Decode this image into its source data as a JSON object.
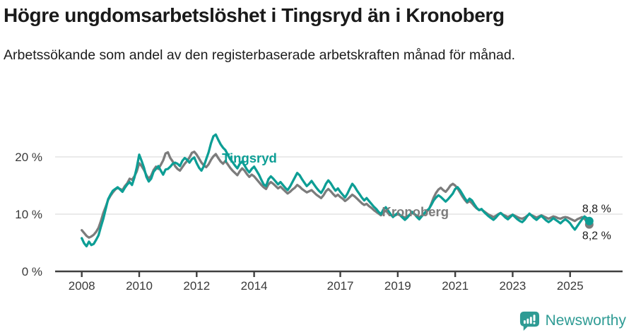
{
  "header": {
    "title": "Högre ungdomsarbetslöshet i Tingsryd än i Kronoberg",
    "subtitle": "Arbetssökande som andel av den registerbaserade arbetskraften månad för månad."
  },
  "chart_data": {
    "type": "line",
    "unit": "%",
    "frequency": "monthly",
    "x_start_year": 2008,
    "ylim": [
      0,
      25
    ],
    "yticks": [
      0,
      10,
      20
    ],
    "ytick_labels": [
      "0 %",
      "10 %",
      "20 %"
    ],
    "xticks": [
      2008,
      2010,
      2012,
      2014,
      2017,
      2019,
      2021,
      2023,
      2025
    ],
    "grid": "horizontal-light",
    "legend_position": "inline-labels",
    "colors": {
      "grid": "#e3e3e3",
      "axis": "#3f3f3f",
      "tick_text": "#3a3a3a",
      "annotation_text": "#1a1a1a"
    },
    "series": [
      {
        "name": "Tingsryd",
        "color": "#0d9e95",
        "end_label": "8,8 %",
        "values": [
          5.8,
          4.9,
          4.4,
          5.2,
          4.6,
          4.8,
          5.5,
          6.3,
          7.8,
          9.2,
          10.9,
          12.6,
          13.4,
          14.1,
          14.4,
          14.7,
          14.3,
          13.9,
          14.6,
          15.2,
          15.6,
          15.1,
          16.4,
          18.2,
          20.4,
          19.3,
          18.1,
          16.5,
          15.7,
          16.2,
          17.4,
          17.9,
          18.4,
          17.6,
          16.9,
          17.8,
          17.9,
          18.3,
          18.8,
          19.0,
          18.8,
          18.4,
          19.3,
          19.8,
          19.5,
          19.0,
          19.6,
          19.9,
          18.9,
          18.1,
          17.6,
          18.4,
          19.6,
          20.8,
          22.4,
          23.6,
          23.9,
          23.0,
          22.2,
          21.6,
          21.2,
          20.4,
          19.6,
          19.1,
          18.5,
          18.0,
          18.8,
          19.2,
          18.5,
          17.8,
          17.3,
          17.9,
          18.3,
          17.6,
          16.9,
          16.0,
          15.2,
          14.9,
          16.1,
          16.6,
          16.2,
          15.7,
          15.2,
          15.6,
          15.1,
          14.6,
          14.2,
          14.8,
          15.6,
          16.4,
          17.2,
          16.8,
          16.1,
          15.5,
          14.9,
          15.3,
          15.8,
          15.2,
          14.6,
          14.1,
          13.7,
          14.4,
          15.3,
          15.9,
          15.4,
          14.7,
          14.1,
          14.5,
          13.9,
          13.4,
          12.9,
          13.6,
          14.5,
          15.3,
          14.8,
          14.1,
          13.5,
          12.9,
          12.4,
          12.8,
          12.3,
          11.8,
          11.3,
          10.9,
          10.4,
          10.0,
          10.8,
          11.2,
          10.6,
          10.0,
          9.5,
          9.9,
          10.2,
          9.8,
          9.4,
          9.0,
          9.4,
          9.9,
          10.4,
          10.0,
          9.5,
          9.1,
          9.6,
          10.1,
          10.6,
          10.9,
          11.6,
          12.4,
          12.9,
          13.3,
          13.0,
          12.6,
          12.2,
          12.6,
          13.1,
          13.6,
          14.4,
          14.7,
          14.2,
          13.5,
          12.8,
          12.2,
          12.7,
          12.4,
          11.7,
          11.1,
          10.7,
          10.9,
          10.4,
          10.0,
          9.6,
          9.3,
          9.0,
          9.4,
          9.9,
          10.2,
          9.8,
          9.4,
          9.1,
          9.5,
          9.9,
          9.5,
          9.1,
          8.8,
          8.6,
          9.0,
          9.6,
          10.1,
          9.7,
          9.3,
          9.0,
          9.4,
          9.7,
          9.3,
          8.9,
          8.6,
          8.9,
          9.3,
          9.0,
          8.7,
          8.4,
          8.8,
          9.1,
          8.8,
          8.4,
          7.8,
          7.3,
          7.9,
          8.5,
          9.1,
          9.6,
          9.3,
          8.8
        ]
      },
      {
        "name": "Kronoberg",
        "color": "#7c7c7c",
        "end_label": "8,2 %",
        "values": [
          7.2,
          6.7,
          6.2,
          5.9,
          6.1,
          6.4,
          6.9,
          7.6,
          8.8,
          10.2,
          11.3,
          12.5,
          13.2,
          13.8,
          14.3,
          14.6,
          14.4,
          14.2,
          14.9,
          15.4,
          16.2,
          16.0,
          16.6,
          17.5,
          18.9,
          18.4,
          17.7,
          16.8,
          16.2,
          16.7,
          17.7,
          18.3,
          17.9,
          18.6,
          19.4,
          20.6,
          20.8,
          19.8,
          19.2,
          18.4,
          17.9,
          17.6,
          18.2,
          18.8,
          19.3,
          19.9,
          20.7,
          20.9,
          20.4,
          19.7,
          19.0,
          18.5,
          18.2,
          18.7,
          19.5,
          20.1,
          20.5,
          19.8,
          19.2,
          18.8,
          19.3,
          18.7,
          18.1,
          17.6,
          17.2,
          16.8,
          17.5,
          18.0,
          17.6,
          17.0,
          16.5,
          16.9,
          16.6,
          16.1,
          15.6,
          15.1,
          14.7,
          14.4,
          15.2,
          15.6,
          15.3,
          14.9,
          14.5,
          14.8,
          14.4,
          14.0,
          13.6,
          13.9,
          14.3,
          14.6,
          15.1,
          14.8,
          14.4,
          14.1,
          13.8,
          14.0,
          14.2,
          13.8,
          13.4,
          13.1,
          12.8,
          13.3,
          14.0,
          14.4,
          14.0,
          13.5,
          13.1,
          13.4,
          13.0,
          12.7,
          12.3,
          12.6,
          13.0,
          13.4,
          13.1,
          12.7,
          12.3,
          11.9,
          11.6,
          11.8,
          11.4,
          11.1,
          10.7,
          10.4,
          10.1,
          9.8,
          10.3,
          10.6,
          10.2,
          9.9,
          9.6,
          9.8,
          10.0,
          9.8,
          9.6,
          9.4,
          9.6,
          9.9,
          10.2,
          10.0,
          9.7,
          9.5,
          9.7,
          10.0,
          10.4,
          10.8,
          11.8,
          12.9,
          13.7,
          14.3,
          14.6,
          14.2,
          13.9,
          14.4,
          15.0,
          15.3,
          15.0,
          14.5,
          13.8,
          13.1,
          12.5,
          12.0,
          12.3,
          11.9,
          11.4,
          11.0,
          10.7,
          10.8,
          10.5,
          10.2,
          9.9,
          9.7,
          9.5,
          9.7,
          10.0,
          10.2,
          9.9,
          9.7,
          9.5,
          9.7,
          9.9,
          9.7,
          9.5,
          9.3,
          9.2,
          9.4,
          9.7,
          10.0,
          9.8,
          9.6,
          9.4,
          9.6,
          9.8,
          9.6,
          9.4,
          9.2,
          9.4,
          9.6,
          9.5,
          9.3,
          9.2,
          9.4,
          9.5,
          9.4,
          9.2,
          9.0,
          8.8,
          9.1,
          9.3,
          9.5,
          9.2,
          8.7,
          8.2
        ]
      }
    ],
    "series_annotations": [
      {
        "text": "Tingsryd",
        "series": "Tingsryd",
        "t": 2012.88,
        "value": 19.0
      },
      {
        "text": "Kronoberg",
        "series": "Kronoberg",
        "t": 2018.45,
        "value": 9.6
      }
    ]
  },
  "footer": {
    "brand": "Newsworthy",
    "logo_color": "#2e9b94"
  }
}
